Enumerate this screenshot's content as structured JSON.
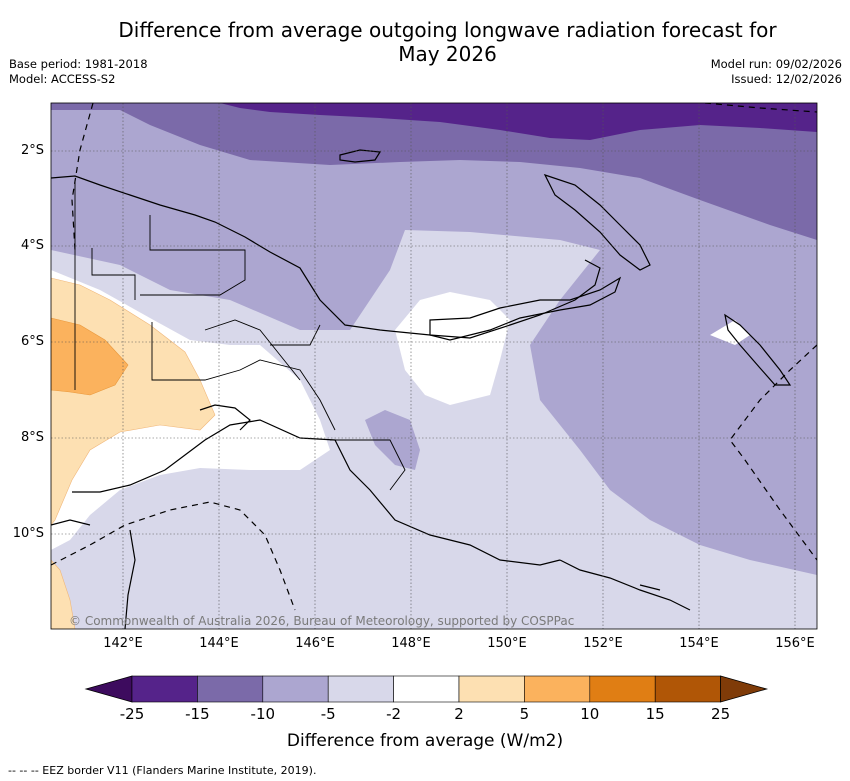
{
  "title": "Difference from average outgoing longwave radiation forecast for\nMay 2026",
  "title_line1": "Difference from average outgoing longwave radiation forecast for",
  "title_line2": "May 2026",
  "base_period": "Base period: 1981-2018",
  "model": "Model: ACCESS-S2",
  "model_run": "Model run: 09/02/2026",
  "issued": "Issued: 12/02/2026",
  "copyright": "© Commonwealth of Australia 2026, Bureau of Meteorology, supported by COSPPac",
  "lat_ticks": [
    "2°S",
    "4°S",
    "6°S",
    "8°S",
    "10°S"
  ],
  "lon_ticks": [
    "142°E",
    "144°E",
    "146°E",
    "148°E",
    "150°E",
    "152°E",
    "154°E",
    "156°E"
  ],
  "colorbar": {
    "title": "Difference from average (W/m2)",
    "tick_labels": [
      "-25",
      "-15",
      "-10",
      "-5",
      "-2",
      "2",
      "5",
      "10",
      "15",
      "25"
    ],
    "colors": [
      "#3d0b5e",
      "#55238a",
      "#7b6aa9",
      "#aca6d0",
      "#d8d8ea",
      "#ffffff",
      "#fde0b2",
      "#fbb25d",
      "#e07e14",
      "#b05606",
      "#7f3b08"
    ]
  },
  "footnote": "-- -- -- EEZ border V11 (Flanders Marine Institute, 2019)."
}
